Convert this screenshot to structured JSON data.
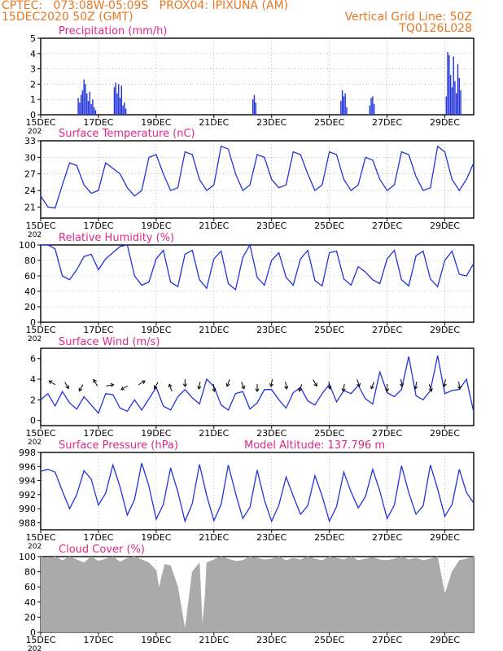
{
  "header": {
    "line1_left": "CPTEC:   073:08W-05:09S   PROX04: IPIXUNA (AM)",
    "line2_left": "15DEC2020 50Z (GMT)",
    "line2_right": "Vertical Grid Line: 50Z",
    "line3_right": "TQ0126L028"
  },
  "colors": {
    "header": "#e87722",
    "panel_title": "#e0288a",
    "series": "#2233dd",
    "cloud_fill": "#aaaaaa",
    "arrow": "#000000"
  },
  "x_axis": {
    "tick_labels": [
      "15DEC",
      "17DEC",
      "19DEC",
      "21DEC",
      "23DEC",
      "25DEC",
      "27DEC",
      "29DEC"
    ],
    "tick_days": [
      0,
      2,
      4,
      6,
      8,
      10,
      12,
      14
    ],
    "sublabel": "202",
    "range_days": [
      0,
      15
    ]
  },
  "chart_data": [
    {
      "id": "precip",
      "type": "bar",
      "title": "Precipitation (mm/h)",
      "ylim": [
        0,
        5
      ],
      "yticks": [
        0,
        1,
        2,
        3,
        4,
        5
      ],
      "grid": true,
      "x_days": [
        1.3,
        1.35,
        1.4,
        1.45,
        1.5,
        1.55,
        1.6,
        1.65,
        1.7,
        1.75,
        1.8,
        1.85,
        1.9,
        2.55,
        2.6,
        2.65,
        2.7,
        2.75,
        2.8,
        2.85,
        2.9,
        2.95,
        7.35,
        7.4,
        7.45,
        10.4,
        10.45,
        10.5,
        10.55,
        10.6,
        11.4,
        11.45,
        11.5,
        11.55,
        14.05,
        14.1,
        14.15,
        14.2,
        14.25,
        14.3,
        14.35,
        14.4,
        14.45,
        14.5,
        14.55
      ],
      "values": [
        1.1,
        0.8,
        1.3,
        1.6,
        2.3,
        2.0,
        1.4,
        0.9,
        1.5,
        0.7,
        1.0,
        0.5,
        0.3,
        1.8,
        2.1,
        1.4,
        2.0,
        1.1,
        1.9,
        0.6,
        0.8,
        0.4,
        1.0,
        1.3,
        0.8,
        0.9,
        1.6,
        1.2,
        1.4,
        0.5,
        0.6,
        1.1,
        1.2,
        0.7,
        1.2,
        4.1,
        3.9,
        2.6,
        1.8,
        3.8,
        2.2,
        1.4,
        3.3,
        2.4,
        1.6
      ]
    },
    {
      "id": "temp",
      "type": "line",
      "title": "Surface Temperature (nC)",
      "ylim": [
        19,
        33
      ],
      "yticks": [
        21,
        24,
        27,
        30,
        33
      ],
      "grid": true,
      "x_days": [
        0,
        0.25,
        0.5,
        0.75,
        1,
        1.25,
        1.5,
        1.75,
        2,
        2.25,
        2.5,
        2.75,
        3,
        3.25,
        3.5,
        3.75,
        4,
        4.25,
        4.5,
        4.75,
        5,
        5.25,
        5.5,
        5.75,
        6,
        6.25,
        6.5,
        6.75,
        7,
        7.25,
        7.5,
        7.75,
        8,
        8.25,
        8.5,
        8.75,
        9,
        9.25,
        9.5,
        9.75,
        10,
        10.25,
        10.5,
        10.75,
        11,
        11.25,
        11.5,
        11.75,
        12,
        12.25,
        12.5,
        12.75,
        13,
        13.25,
        13.5,
        13.75,
        14,
        14.25,
        14.5,
        14.75,
        15
      ],
      "values": [
        23,
        21,
        20.8,
        25,
        29,
        28.5,
        25,
        23.5,
        24,
        29,
        28,
        27,
        24.5,
        23,
        24,
        30,
        30.5,
        27,
        24,
        24.5,
        31,
        30.5,
        26,
        24,
        25,
        32,
        31.5,
        27,
        24,
        25,
        30.5,
        30,
        26,
        24.5,
        25,
        31,
        30.5,
        27,
        24,
        25,
        31,
        30.5,
        26,
        24,
        25,
        30,
        29.5,
        26,
        24,
        25,
        31,
        30.5,
        26.5,
        24,
        24.5,
        32,
        31,
        26,
        24,
        26,
        29
      ]
    },
    {
      "id": "rh",
      "type": "line",
      "title": "Relative Humidity (%)",
      "ylim": [
        0,
        100
      ],
      "yticks": [
        0,
        20,
        40,
        60,
        80,
        100
      ],
      "grid": true,
      "x_days": [
        0,
        0.25,
        0.5,
        0.75,
        1,
        1.25,
        1.5,
        1.75,
        2,
        2.25,
        2.5,
        2.75,
        3,
        3.25,
        3.5,
        3.75,
        4,
        4.25,
        4.5,
        4.75,
        5,
        5.25,
        5.5,
        5.75,
        6,
        6.25,
        6.5,
        6.75,
        7,
        7.25,
        7.5,
        7.75,
        8,
        8.25,
        8.5,
        8.75,
        9,
        9.25,
        9.5,
        9.75,
        10,
        10.25,
        10.5,
        10.75,
        11,
        11.25,
        11.5,
        11.75,
        12,
        12.25,
        12.5,
        12.75,
        13,
        13.25,
        13.5,
        13.75,
        14,
        14.25,
        14.5,
        14.75,
        15
      ],
      "values": [
        100,
        100,
        95,
        60,
        55,
        68,
        85,
        88,
        68,
        82,
        90,
        98,
        100,
        60,
        48,
        52,
        82,
        93,
        52,
        46,
        88,
        93,
        55,
        44,
        82,
        92,
        50,
        42,
        84,
        100,
        58,
        48,
        80,
        90,
        58,
        48,
        82,
        93,
        54,
        47,
        90,
        92,
        56,
        48,
        72,
        65,
        55,
        50,
        82,
        93,
        55,
        47,
        86,
        92,
        56,
        46,
        80,
        92,
        62,
        60,
        76
      ]
    },
    {
      "id": "wind",
      "type": "line",
      "title": "Surface Wind (m/s)",
      "ylim": [
        -0.5,
        7
      ],
      "yticks": [
        0,
        2,
        4,
        6
      ],
      "grid": false,
      "x_days": [
        0,
        0.25,
        0.5,
        0.75,
        1,
        1.25,
        1.5,
        1.75,
        2,
        2.25,
        2.5,
        2.75,
        3,
        3.25,
        3.5,
        3.75,
        4,
        4.25,
        4.5,
        4.75,
        5,
        5.25,
        5.5,
        5.75,
        6,
        6.25,
        6.5,
        6.75,
        7,
        7.25,
        7.5,
        7.75,
        8,
        8.25,
        8.5,
        8.75,
        9,
        9.25,
        9.5,
        9.75,
        10,
        10.25,
        10.5,
        10.75,
        11,
        11.25,
        11.5,
        11.75,
        12,
        12.25,
        12.5,
        12.75,
        13,
        13.25,
        13.5,
        13.75,
        14,
        14.25,
        14.5,
        14.75,
        15
      ],
      "values": [
        2,
        2.6,
        1.4,
        2.8,
        1.7,
        1.1,
        2.3,
        1.5,
        0.7,
        2.6,
        2.5,
        1.2,
        0.9,
        2.0,
        1.0,
        2.1,
        3.2,
        1.4,
        1.0,
        2.3,
        3.0,
        2.2,
        1.6,
        4.0,
        3.3,
        1.5,
        1.0,
        2.6,
        2.8,
        1.1,
        1.7,
        3.0,
        3.0,
        2.0,
        1.2,
        2.7,
        3.2,
        1.9,
        1.5,
        2.6,
        3.5,
        1.8,
        2.9,
        2.6,
        3.4,
        2.1,
        1.6,
        4.7,
        2.7,
        2.3,
        3.0,
        6.2,
        2.4,
        2.0,
        2.9,
        6.3,
        2.6,
        2.9,
        3.0,
        4.0,
        0.8
      ],
      "arrows": {
        "x_days": [
          0.4,
          0.9,
          1.4,
          1.9,
          2.4,
          2.9,
          3.5,
          4.0,
          4.5,
          5.0,
          5.5,
          6.0,
          6.5,
          7.0,
          7.5,
          8.0,
          8.5,
          9.0,
          9.5,
          10.0,
          10.5,
          11.0,
          11.5,
          12.0,
          12.5,
          13.0,
          13.5,
          14.0,
          14.5
        ],
        "direction_deg": [
          300,
          150,
          210,
          330,
          80,
          240,
          60,
          210,
          340,
          180,
          190,
          170,
          200,
          160,
          180,
          190,
          170,
          200,
          150,
          170,
          190,
          160,
          200,
          180,
          170,
          190,
          160,
          190,
          170
        ]
      }
    },
    {
      "id": "pres",
      "type": "line",
      "title": "Surface Pressure (hPa)",
      "annotation": "Model Altitude: 137.796  m",
      "ylim": [
        987,
        998
      ],
      "yticks": [
        988,
        990,
        992,
        994,
        996,
        998
      ],
      "grid": false,
      "x_days": [
        0,
        0.25,
        0.5,
        0.75,
        1,
        1.25,
        1.5,
        1.75,
        2,
        2.25,
        2.5,
        2.75,
        3,
        3.25,
        3.5,
        3.75,
        4,
        4.25,
        4.5,
        4.75,
        5,
        5.25,
        5.5,
        5.75,
        6,
        6.25,
        6.5,
        6.75,
        7,
        7.25,
        7.5,
        7.75,
        8,
        8.25,
        8.5,
        8.75,
        9,
        9.25,
        9.5,
        9.75,
        10,
        10.25,
        10.5,
        10.75,
        11,
        11.25,
        11.5,
        11.75,
        12,
        12.25,
        12.5,
        12.75,
        13,
        13.25,
        13.5,
        13.75,
        14,
        14.25,
        14.5,
        14.75,
        15
      ],
      "values": [
        995.3,
        995.6,
        995.2,
        992.5,
        990,
        992,
        995.4,
        994.2,
        990.5,
        992.2,
        996.2,
        993.1,
        989.1,
        991.3,
        996.5,
        993.2,
        988.5,
        990.6,
        995.8,
        992.4,
        988.2,
        990.7,
        996.3,
        991.9,
        988.3,
        990.6,
        996.2,
        992.2,
        988.6,
        990.2,
        995.5,
        991.2,
        988.2,
        990.5,
        994.5,
        991.8,
        989.2,
        990.4,
        994.7,
        991.8,
        988.2,
        990.3,
        995.2,
        992.4,
        990.1,
        991.7,
        995.6,
        992.5,
        988.6,
        990.5,
        996.1,
        992.3,
        989.2,
        990.4,
        996.2,
        992.8,
        988.9,
        990.6,
        995.6,
        992.3,
        990.8
      ]
    },
    {
      "id": "cloud",
      "type": "area",
      "title": "Cloud Cover (%)",
      "ylim": [
        0,
        100
      ],
      "yticks": [
        0,
        20,
        40,
        60,
        80,
        100
      ],
      "grid": false,
      "x_days": [
        0,
        0.25,
        0.5,
        0.75,
        1,
        1.25,
        1.5,
        1.75,
        2,
        2.25,
        2.5,
        2.75,
        3,
        3.25,
        3.5,
        3.75,
        4,
        4.1,
        4.2,
        4.3,
        4.5,
        4.75,
        5,
        5.25,
        5.5,
        5.6,
        5.7,
        5.75,
        6,
        6.25,
        6.5,
        6.75,
        7,
        7.25,
        7.5,
        7.75,
        8,
        8.25,
        8.5,
        8.75,
        9,
        9.25,
        9.5,
        9.75,
        10,
        10.25,
        10.5,
        10.75,
        11,
        11.25,
        11.5,
        11.75,
        12,
        12.25,
        12.5,
        12.75,
        13,
        13.25,
        13.5,
        13.75,
        14,
        14.25,
        14.5,
        14.75,
        15
      ],
      "values": [
        100,
        98,
        100,
        95,
        100,
        96,
        92,
        100,
        94,
        97,
        100,
        93,
        98,
        100,
        96,
        92,
        82,
        58,
        75,
        90,
        88,
        60,
        4,
        80,
        92,
        8,
        50,
        92,
        96,
        100,
        97,
        94,
        95,
        100,
        98,
        96,
        97,
        100,
        95,
        98,
        96,
        100,
        97,
        95,
        100,
        98,
        96,
        100,
        95,
        97,
        99,
        96,
        95,
        97,
        100,
        96,
        98,
        95,
        97,
        100,
        50,
        80,
        95,
        97,
        100
      ]
    }
  ]
}
